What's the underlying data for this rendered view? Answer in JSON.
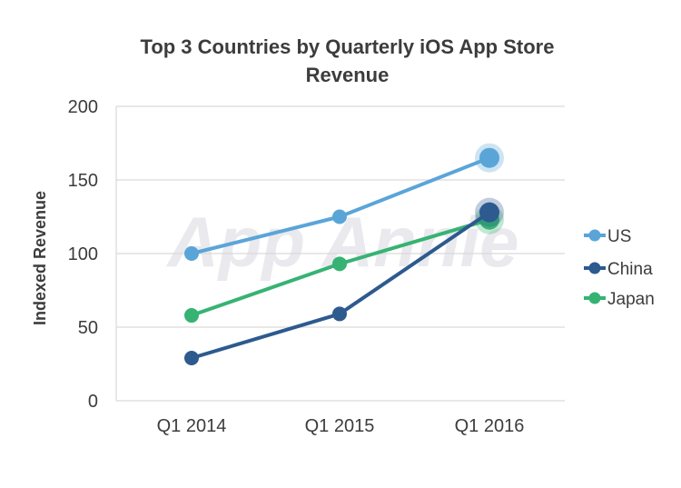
{
  "chart_data": {
    "type": "line",
    "title_lines": [
      "Top 3 Countries by Quarterly iOS App Store",
      "Revenue"
    ],
    "xlabel": "",
    "ylabel": "Indexed Revenue",
    "categories": [
      "Q1 2014",
      "Q1 2015",
      "Q1 2016"
    ],
    "ylim": [
      0,
      200
    ],
    "yticks": [
      0,
      50,
      100,
      150,
      200
    ],
    "grid": "horizontal",
    "legend_position": "right",
    "watermark": "App Annie",
    "series": [
      {
        "name": "US",
        "values": [
          100,
          125,
          165
        ],
        "color": "#5aa5d8"
      },
      {
        "name": "China",
        "values": [
          29,
          59,
          128
        ],
        "color": "#2d5a8f"
      },
      {
        "name": "Japan",
        "values": [
          58,
          93,
          123
        ],
        "color": "#36b373"
      }
    ]
  }
}
